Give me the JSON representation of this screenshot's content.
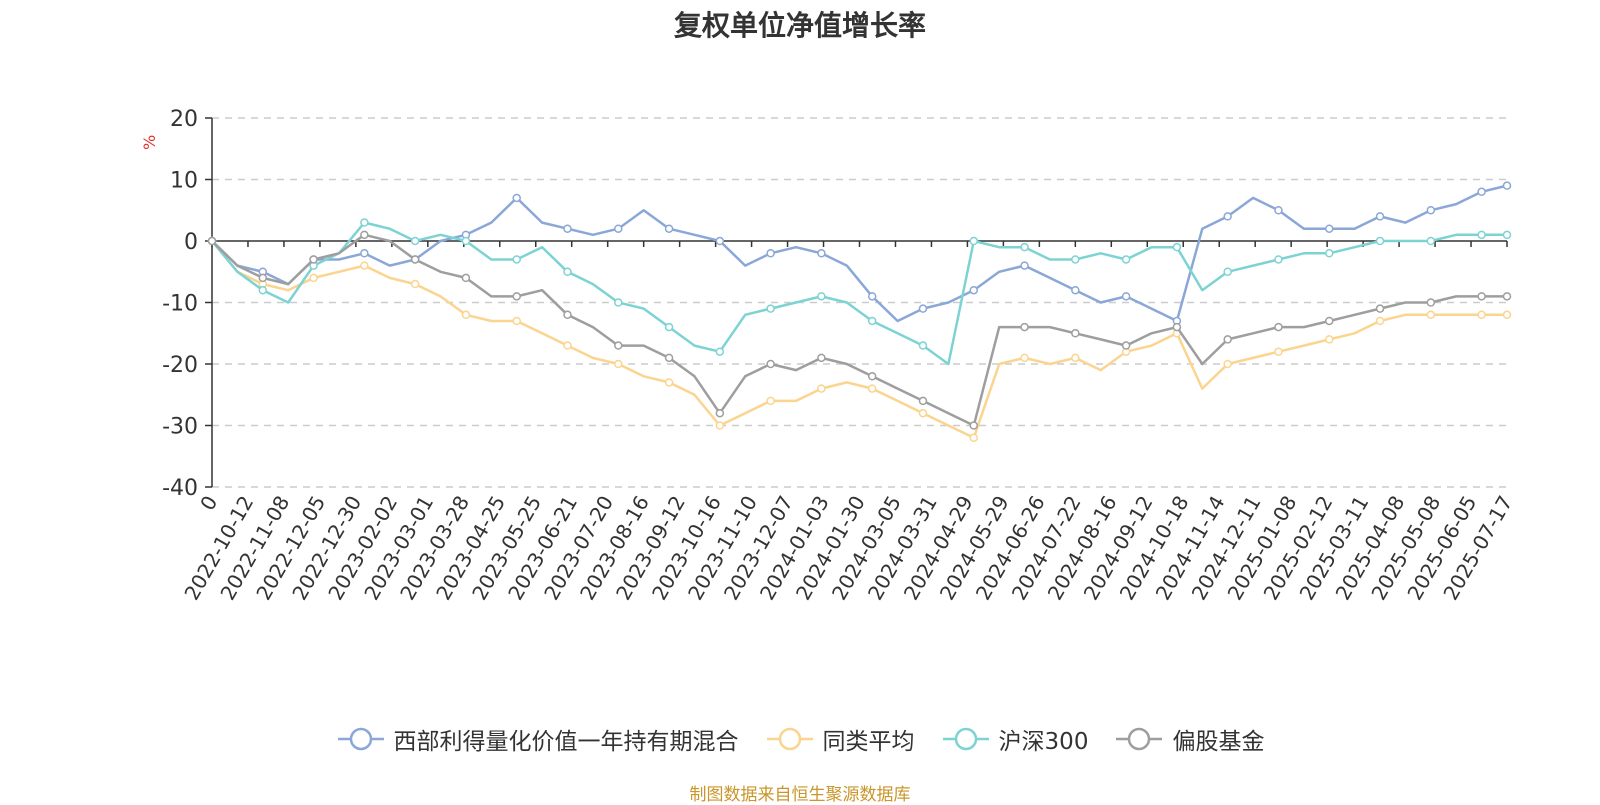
{
  "chart_data": {
    "type": "line",
    "title": "复权单位净值增长率",
    "ylabel": "%",
    "ylim": [
      -40,
      20
    ],
    "yticks": [
      20,
      10,
      0,
      -10,
      -20,
      -30,
      -40
    ],
    "x_tick_labels": [
      "0",
      "2022-10-12",
      "2022-11-08",
      "2022-12-05",
      "2022-12-30",
      "2023-02-02",
      "2023-03-01",
      "2023-03-28",
      "2023-04-25",
      "2023-05-25",
      "2023-06-21",
      "2023-07-20",
      "2023-08-16",
      "2023-09-12",
      "2023-10-16",
      "2023-11-10",
      "2023-12-07",
      "2024-01-03",
      "2024-01-30",
      "2024-03-05",
      "2024-03-31",
      "2024-04-29",
      "2024-05-29",
      "2024-06-26",
      "2024-07-22",
      "2024-08-16",
      "2024-09-12",
      "2024-10-18",
      "2024-11-14",
      "2024-12-11",
      "2025-01-08",
      "2025-02-12",
      "2025-03-11",
      "2025-04-08",
      "2025-05-08",
      "2025-06-05",
      "2025-07-17"
    ],
    "grid": true,
    "legend_position": "bottom",
    "series": [
      {
        "name": "西部利得量化价值一年持有期混合",
        "color": "#8aa7d8",
        "values": [
          0,
          -4,
          -5,
          -7,
          -3,
          -3,
          -2,
          -4,
          -3,
          0,
          1,
          3,
          7,
          3,
          2,
          1,
          2,
          5,
          2,
          1,
          0,
          -4,
          -2,
          -1,
          -2,
          -4,
          -9,
          -13,
          -11,
          -10,
          -8,
          -5,
          -4,
          -6,
          -8,
          -10,
          -9,
          -11,
          -13,
          2,
          4,
          7,
          5,
          2,
          2,
          2,
          4,
          3,
          5,
          6,
          8,
          9
        ]
      },
      {
        "name": "同类平均",
        "color": "#fbd48f",
        "values": [
          0,
          -5,
          -7,
          -8,
          -6,
          -5,
          -4,
          -6,
          -7,
          -9,
          -12,
          -13,
          -13,
          -15,
          -17,
          -19,
          -20,
          -22,
          -23,
          -25,
          -30,
          -28,
          -26,
          -26,
          -24,
          -23,
          -24,
          -26,
          -28,
          -30,
          -32,
          -20,
          -19,
          -20,
          -19,
          -21,
          -18,
          -17,
          -15,
          -24,
          -20,
          -19,
          -18,
          -17,
          -16,
          -15,
          -13,
          -12,
          -12,
          -12,
          -12,
          -12
        ]
      },
      {
        "name": "沪深300",
        "color": "#7dd3d3",
        "values": [
          0,
          -5,
          -8,
          -10,
          -4,
          -2,
          3,
          2,
          0,
          1,
          0,
          -3,
          -3,
          -1,
          -5,
          -7,
          -10,
          -11,
          -14,
          -17,
          -18,
          -12,
          -11,
          -10,
          -9,
          -10,
          -13,
          -15,
          -17,
          -20,
          0,
          -1,
          -1,
          -3,
          -3,
          -2,
          -3,
          -1,
          -1,
          -8,
          -5,
          -4,
          -3,
          -2,
          -2,
          -1,
          0,
          0,
          0,
          1,
          1,
          1
        ]
      },
      {
        "name": "偏股基金",
        "color": "#9e9e9e",
        "values": [
          0,
          -4,
          -6,
          -7,
          -3,
          -2,
          1,
          0,
          -3,
          -5,
          -6,
          -9,
          -9,
          -8,
          -12,
          -14,
          -17,
          -17,
          -19,
          -22,
          -28,
          -22,
          -20,
          -21,
          -19,
          -20,
          -22,
          -24,
          -26,
          -28,
          -30,
          -14,
          -14,
          -14,
          -15,
          -16,
          -17,
          -15,
          -14,
          -20,
          -16,
          -15,
          -14,
          -14,
          -13,
          -12,
          -11,
          -10,
          -10,
          -9,
          -9,
          -9
        ]
      }
    ]
  },
  "source_note": "制图数据来自恒生聚源数据库"
}
